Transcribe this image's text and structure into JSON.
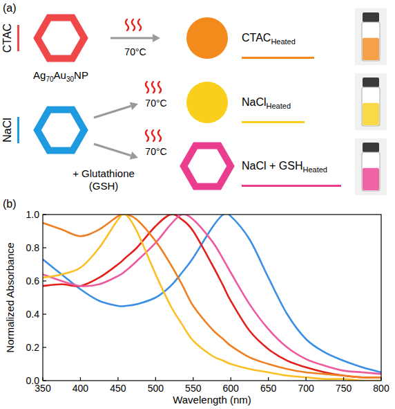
{
  "diagram": {
    "panel_label": "(a)",
    "nanoparticle": {
      "elements": [
        {
          "symbol": "Ag",
          "sub": "70"
        },
        {
          "symbol": "Au",
          "sub": "30"
        }
      ],
      "suffix": "NP"
    },
    "starting": [
      {
        "label": "CTAC",
        "color": "#f04848"
      },
      {
        "label": "NaCl",
        "color": "#1e9be0"
      }
    ],
    "heat": "70°C",
    "additive": [
      "+ Glutathione",
      "(GSH)"
    ],
    "products": [
      {
        "label": "CTAC",
        "sub": "Heated",
        "color": "#f28a1c",
        "shape": "circle"
      },
      {
        "label": "NaCl",
        "sub": "Heated",
        "color": "#f9cf1c",
        "shape": "circle"
      },
      {
        "label": "NaCl + GSH",
        "sub": "Heated",
        "color": "#ea3d8e",
        "shape": "hexagon"
      }
    ]
  },
  "chart_data": {
    "type": "line",
    "panel_label": "(b)",
    "x_label": "Wavelength (nm)",
    "y_label": "Normalized Absorbance",
    "x": [
      350,
      375,
      400,
      425,
      450,
      460,
      475,
      500,
      520,
      535,
      550,
      575,
      590,
      600,
      625,
      650,
      675,
      700,
      725,
      750,
      775,
      800
    ],
    "xlim": [
      350,
      800
    ],
    "xticks": [
      350,
      400,
      450,
      500,
      550,
      600,
      650,
      700,
      750,
      800
    ],
    "ylim": [
      0,
      1
    ],
    "yticks": [
      {
        "value": 0,
        "label": "0.0"
      },
      0.2,
      0.4,
      0.6,
      0.8,
      {
        "value": 1,
        "label": "1.0"
      }
    ],
    "series": [
      {
        "color": "#3a8ee6",
        "values": [
          0.73,
          0.64,
          0.55,
          0.48,
          0.45,
          0.45,
          0.46,
          0.5,
          0.57,
          0.65,
          0.74,
          0.92,
          1.0,
          0.99,
          0.85,
          0.62,
          0.4,
          0.25,
          0.17,
          0.12,
          0.08,
          0.05
        ]
      },
      {
        "color": "#e3211c",
        "values": [
          0.57,
          0.58,
          0.57,
          0.62,
          0.7,
          0.74,
          0.8,
          0.93,
          1.0,
          0.97,
          0.9,
          0.7,
          0.57,
          0.48,
          0.3,
          0.19,
          0.12,
          0.08,
          0.05,
          0.03,
          0.02,
          0.02
        ]
      },
      {
        "color": "#ee5a9e",
        "values": [
          0.64,
          0.6,
          0.57,
          0.58,
          0.63,
          0.66,
          0.72,
          0.83,
          0.94,
          1.0,
          0.97,
          0.84,
          0.73,
          0.65,
          0.46,
          0.31,
          0.2,
          0.13,
          0.09,
          0.06,
          0.05,
          0.04
        ]
      },
      {
        "color": "#f07f22",
        "values": [
          0.95,
          0.91,
          0.87,
          0.91,
          0.99,
          1.0,
          0.97,
          0.84,
          0.7,
          0.58,
          0.45,
          0.31,
          0.25,
          0.21,
          0.14,
          0.1,
          0.07,
          0.05,
          0.04,
          0.03,
          0.02,
          0.02
        ]
      },
      {
        "color": "#fbbf24",
        "values": [
          0.62,
          0.64,
          0.68,
          0.8,
          0.97,
          1.0,
          0.9,
          0.64,
          0.45,
          0.34,
          0.24,
          0.15,
          0.12,
          0.1,
          0.07,
          0.05,
          0.03,
          0.02,
          0.01,
          0.01,
          0.0,
          0.0
        ]
      }
    ]
  }
}
